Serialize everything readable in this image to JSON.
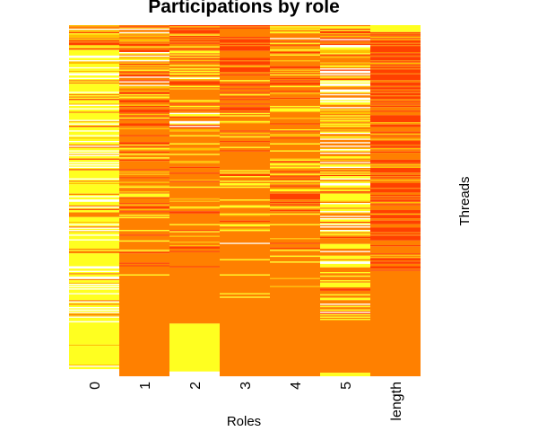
{
  "chart_data": {
    "type": "heatmap",
    "title": "Participations by role",
    "xlabel": "Roles",
    "ylabel": "Threads",
    "categories": [
      "0",
      "1",
      "2",
      "3",
      "4",
      "5",
      "length"
    ],
    "color_scale": [
      "#ff4000",
      "#ff8000",
      "#ffc000",
      "#ffff20",
      "#ffffff"
    ],
    "color_scale_direction": "low values dark orange-red, high values white",
    "row_count": 300,
    "legend": "none",
    "grid": false
  }
}
